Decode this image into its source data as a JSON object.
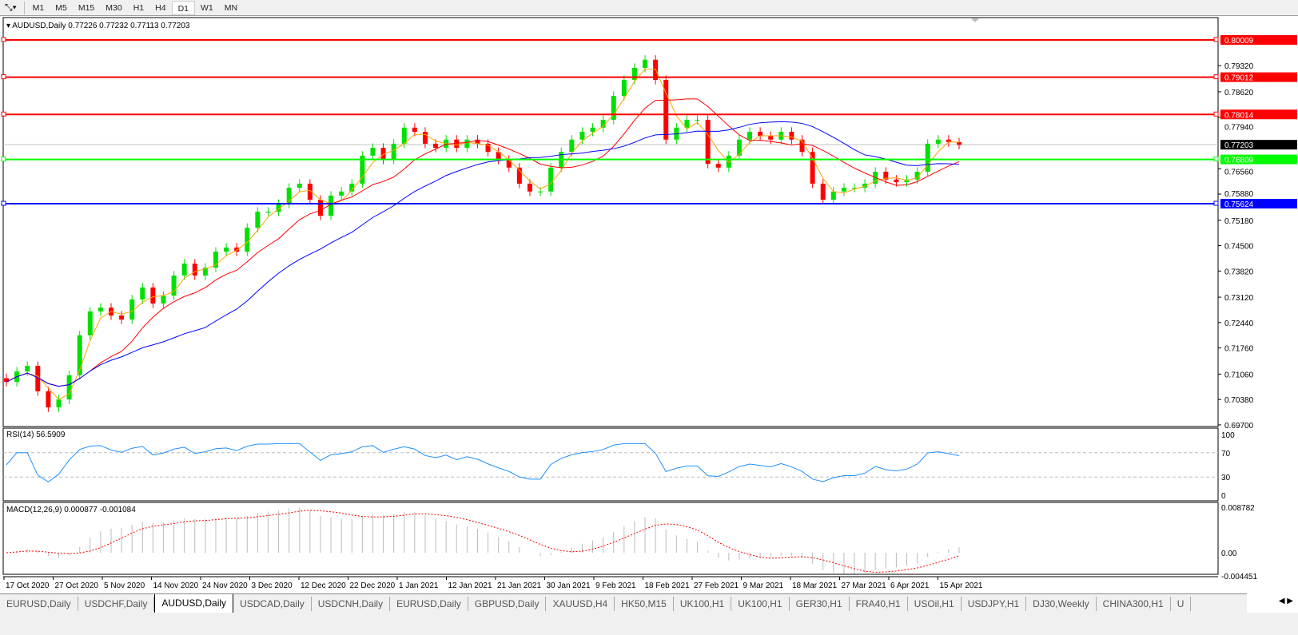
{
  "toolbar": {
    "timeframes": [
      "M1",
      "M5",
      "M15",
      "M30",
      "H1",
      "H4",
      "D1",
      "W1",
      "MN"
    ],
    "active": "D1"
  },
  "chart": {
    "header": "AUDUSD,Daily  0.77226 0.77232 0.77113 0.77203",
    "price_ticks": [
      "0.79320",
      "0.78620",
      "0.77940",
      "0.76560",
      "0.75880",
      "0.75180",
      "0.74500",
      "0.73820",
      "0.73120",
      "0.72440",
      "0.71760",
      "0.71060",
      "0.70380",
      "0.69700"
    ],
    "hlines": [
      {
        "price": 0.80009,
        "label": "0.80009",
        "color": "#ff0000"
      },
      {
        "price": 0.79012,
        "label": "0.79012",
        "color": "#ff0000"
      },
      {
        "price": 0.78014,
        "label": "0.78014",
        "color": "#ff0000"
      },
      {
        "price": 0.76809,
        "label": "0.76809",
        "color": "#00ff00"
      },
      {
        "price": 0.75624,
        "label": "0.75624",
        "color": "#0000ff"
      }
    ],
    "current_price": {
      "price": 0.77203,
      "label": "0.77203"
    },
    "bull_color": "#00e000",
    "bear_color": "#ff0000",
    "ma_colors": [
      "#ffa500",
      "#ff0000",
      "#0000ff"
    ],
    "date_labels": [
      "17 Oct 2020",
      "27 Oct 2020",
      "5 Nov 2020",
      "14 Nov 2020",
      "24 Nov 2020",
      "3 Dec 2020",
      "12 Dec 2020",
      "22 Dec 2020",
      "1 Jan 2021",
      "12 Jan 2021",
      "21 Jan 2021",
      "30 Jan 2021",
      "9 Feb 2021",
      "18 Feb 2021",
      "27 Feb 2021",
      "9 Mar 2021",
      "18 Mar 2021",
      "27 Mar 2021",
      "6 Apr 2021",
      "15 Apr 2021"
    ]
  },
  "chart_data": {
    "type": "candlestick",
    "symbol": "AUDUSD",
    "timeframe": "Daily",
    "ylim": [
      0.697,
      0.8025
    ],
    "closes": [
      0.7085,
      0.7113,
      0.7128,
      0.706,
      0.7017,
      0.7038,
      0.7103,
      0.721,
      0.7274,
      0.7284,
      0.7263,
      0.7252,
      0.7306,
      0.7338,
      0.7295,
      0.7316,
      0.737,
      0.7402,
      0.737,
      0.7391,
      0.7434,
      0.7445,
      0.7434,
      0.7498,
      0.7541,
      0.7541,
      0.7562,
      0.7605,
      0.7616,
      0.7573,
      0.753,
      0.7584,
      0.7595,
      0.7616,
      0.7691,
      0.7712,
      0.768,
      0.7723,
      0.7766,
      0.7755,
      0.7723,
      0.7712,
      0.7734,
      0.7712,
      0.7734,
      0.7723,
      0.7701,
      0.768,
      0.7659,
      0.7616,
      0.7595,
      0.7595,
      0.7659,
      0.7701,
      0.7734,
      0.7755,
      0.7766,
      0.7787,
      0.7851,
      0.7894,
      0.7926,
      0.7948,
      0.7894,
      0.7734,
      0.7766,
      0.7787,
      0.7787,
      0.7669,
      0.7659,
      0.7691,
      0.7734,
      0.7755,
      0.7744,
      0.7734,
      0.7755,
      0.7734,
      0.7701,
      0.7616,
      0.7573,
      0.7595,
      0.7605,
      0.7605,
      0.7616,
      0.7648,
      0.7627,
      0.762,
      0.7627,
      0.7648,
      0.7723,
      0.7734,
      0.7727,
      0.772
    ]
  },
  "rsi": {
    "label": "RSI(14) 56.5909",
    "levels": [
      "100",
      "70",
      "30",
      "0"
    ]
  },
  "macd": {
    "label": "MACD(12,26,9) 0.000877 -0.001084",
    "ticks": [
      "0.008782",
      "0.00",
      "-0.004451"
    ]
  },
  "tabs": [
    "EURUSD,Daily",
    "USDCHF,Daily",
    "AUDUSD,Daily",
    "USDCAD,Daily",
    "USDCNH,Daily",
    "EURUSD,Daily",
    "GBPUSD,Daily",
    "XAUUSD,H4",
    "HK50,M15",
    "UK100,H1",
    "UK100,H1",
    "GER30,H1",
    "FRA40,H1",
    "USOil,H1",
    "USDJPY,H1",
    "DJ30,Weekly",
    "CHINA300,H1",
    "U"
  ],
  "active_tab": "AUDUSD,Daily"
}
